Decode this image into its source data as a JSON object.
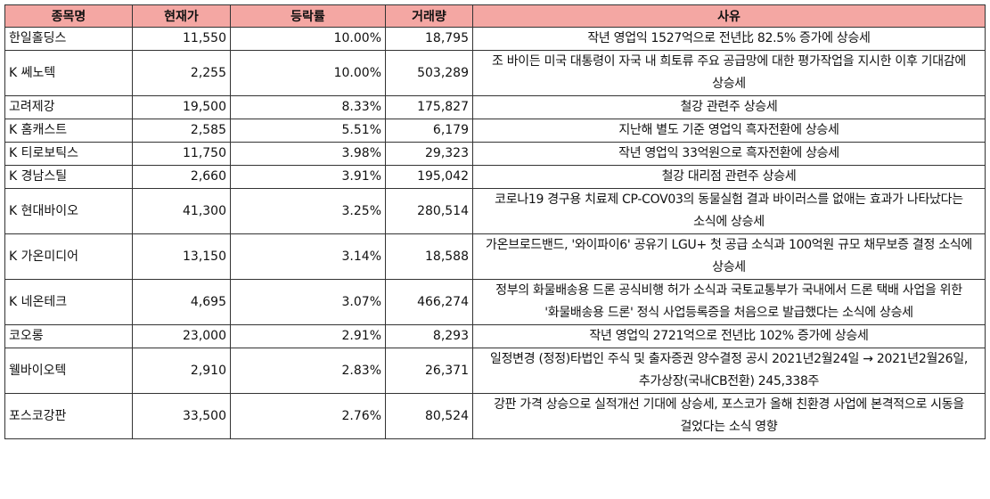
{
  "table": {
    "header": [
      "종목명",
      "현재가",
      "등락률",
      "거래량",
      "사유"
    ],
    "rows": [
      [
        "한일홀딩스",
        "11,550",
        "10.00%",
        "18,795",
        "작년 영업익 1527억으로 전년比 82.5% 증가에 상승세"
      ],
      [
        "K 쎄노텍",
        "2,255",
        "10.00%",
        "503,289",
        "조 바이든 미국 대통령이 자국 내 희토류 주요 공급망에 대한 평가작업을 지시한 이후 기대감에 상승세"
      ],
      [
        "고려제강",
        "19,500",
        "8.33%",
        "175,827",
        "철강 관련주 상승세"
      ],
      [
        "K 홈캐스트",
        "2,585",
        "5.51%",
        "6,179",
        "지난해 별도 기준 영업익 흑자전환에 상승세"
      ],
      [
        "K 티로보틱스",
        "11,750",
        "3.98%",
        "29,323",
        "작년 영업익 33억원으로 흑자전환에 상승세"
      ],
      [
        "K 경남스틸",
        "2,660",
        "3.91%",
        "195,042",
        "철강 대리점 관련주 상승세"
      ],
      [
        "K 현대바이오",
        "41,300",
        "3.25%",
        "280,514",
        "코로나19 경구용 치료제 CP-COV03의 동물실험 결과 바이러스를 없애는 효과가 나타났다는 소식에 상승세"
      ],
      [
        "K 가온미디어",
        "13,150",
        "3.14%",
        "18,588",
        "가온브로드밴드, '와이파이6' 공유기 LGU+ 첫 공급 소식과 100억원 규모 채무보증 결정 소식에 상승세"
      ],
      [
        "K 네온테크",
        "4,695",
        "3.07%",
        "466,274",
        "정부의 화물배송용 드론 공식비행 허가 소식과 국토교통부가 국내에서 드론 택배 사업을 위한 '화물배송용 드론' 정식 사업등록증을 처음으로 발급했다는 소식에 상승세"
      ],
      [
        "코오롱",
        "23,000",
        "2.91%",
        "8,293",
        "작년 영업익 2721억으로 전년比 102% 증가에 상승세"
      ],
      [
        "웰바이오텍",
        "2,910",
        "2.83%",
        "26,371",
        "일정변경 (정정)타법인 주식 및 출자증권 양수결정 공시 2021년2월24일 → 2021년2월26일, 추가상장(국내CB전환) 245,338주"
      ],
      [
        "포스코강판",
        "33,500",
        "2.76%",
        "80,524",
        "강판 가격 상승으로 실적개선 기대에 상승세, 포스코가 올해 친환경 사업에 본격적으로 시동을 걸었다는 소식 영향"
      ]
    ]
  }
}
